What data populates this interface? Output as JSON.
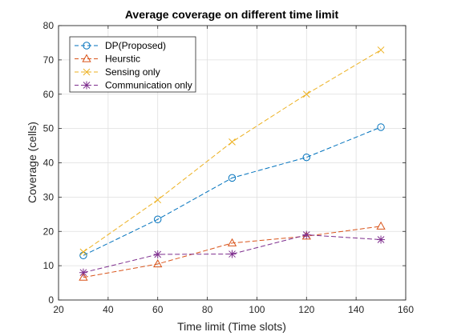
{
  "chart_data": {
    "type": "line",
    "title": "Average coverage on different time limit",
    "xlabel": "Time limit (Time slots)",
    "ylabel": "Coverage (cells)",
    "xlim": [
      20,
      160
    ],
    "ylim": [
      0,
      80
    ],
    "xticks": [
      "20",
      "40",
      "60",
      "80",
      "100",
      "120",
      "140",
      "160"
    ],
    "yticks": [
      "0",
      "10",
      "20",
      "30",
      "40",
      "50",
      "60",
      "70",
      "80"
    ],
    "grid": true,
    "legend_position": "top-left",
    "x": [
      30,
      60,
      90,
      120,
      150
    ],
    "series": [
      {
        "name": "DP(Proposed)",
        "color": "#0072BD",
        "marker": "circle",
        "line_style": "dashed",
        "values": [
          13.0,
          23.5,
          35.6,
          41.6,
          50.4
        ]
      },
      {
        "name": "Heurstic",
        "color": "#D95319",
        "marker": "triangle",
        "line_style": "dashed",
        "values": [
          6.6,
          10.5,
          16.6,
          18.6,
          21.5
        ]
      },
      {
        "name": "Sensing only",
        "color": "#EDB120",
        "marker": "x",
        "line_style": "dashed",
        "values": [
          14.0,
          29.2,
          46.1,
          60.0,
          72.9
        ]
      },
      {
        "name": "Communication only",
        "color": "#7E2F8E",
        "marker": "asterisk",
        "line_style": "dashed",
        "values": [
          8.0,
          13.3,
          13.4,
          19.0,
          17.6
        ]
      }
    ]
  }
}
